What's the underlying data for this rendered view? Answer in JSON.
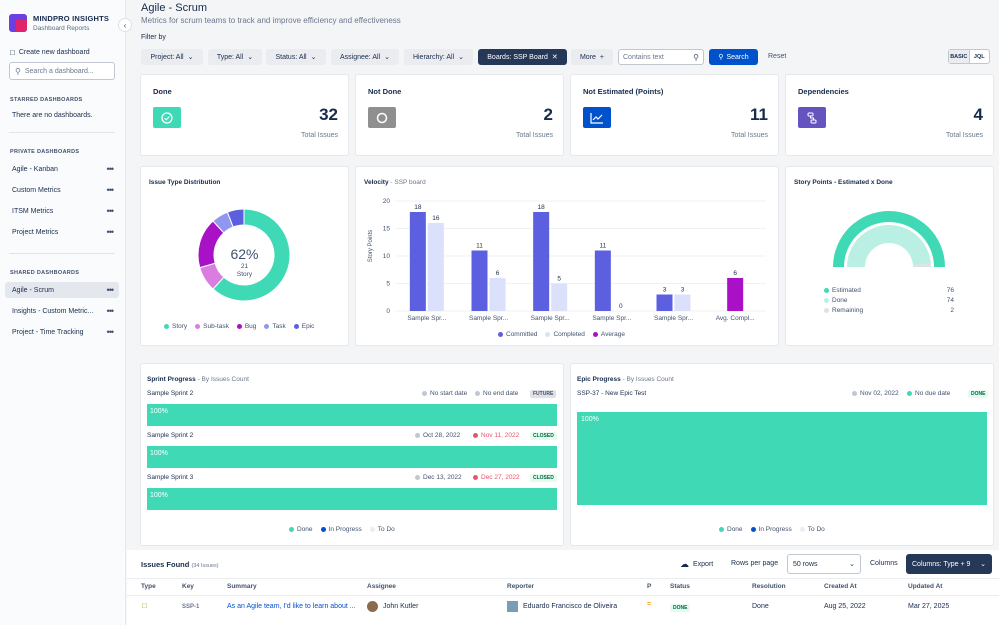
{
  "sidebar": {
    "brand": "MINDPRO INSIGHTS",
    "brand_sub": "Dashboard Reports",
    "create": "Create new dashboard",
    "search_placeholder": "Search a dashboard...",
    "starred_title": "STARRED DASHBOARDS",
    "starred_empty": "There are no dashboards.",
    "private_title": "PRIVATE DASHBOARDS",
    "private": [
      "Agile - Kanban",
      "Custom Metrics",
      "ITSM Metrics",
      "Project Metrics"
    ],
    "shared_title": "SHARED DASHBOARDS",
    "shared": [
      "Agile - Scrum",
      "Insights - Custom Metric...",
      "Project - Time Tracking"
    ]
  },
  "header": {
    "title": "Agile - Scrum",
    "subtitle": "Metrics for scrum teams to track and improve efficiency and effectiveness",
    "filter_by": "Filter by"
  },
  "filters": {
    "project": "Project: All",
    "type": "Type: All",
    "status": "Status: All",
    "assignee": "Assignee: All",
    "hierarchy": "Hierarchy: All",
    "boards": "Boards: SSP Board",
    "more": "More",
    "contains_placeholder": "Contains text",
    "search": "Search",
    "reset": "Reset",
    "basic": "BASIC",
    "jql": "JQL"
  },
  "stats": [
    {
      "title": "Done",
      "value": "32",
      "sub": "Total Issues",
      "color": "#3fd9b6"
    },
    {
      "title": "Not Done",
      "value": "2",
      "sub": "Total Issues",
      "color": "#8f8f8f"
    },
    {
      "title": "Not Estimated (Points)",
      "value": "11",
      "sub": "Total Issues",
      "color": "#0052cc"
    },
    {
      "title": "Dependencies",
      "value": "4",
      "sub": "Total Issues",
      "color": "#6554c0"
    }
  ],
  "issue_type": {
    "title": "Issue Type Distribution",
    "center_pct": "62%",
    "center_count": "21",
    "center_label": "Story",
    "legend": [
      "Story",
      "Sub-task",
      "Bug",
      "Task",
      "Epic"
    ]
  },
  "velocity": {
    "title": "Velocity",
    "subtitle": "- SSP board",
    "ylabel": "Story Points",
    "legend": [
      "Committed",
      "Completed",
      "Average"
    ]
  },
  "story_points": {
    "title": "Story Points - Estimated x Done",
    "rows": [
      {
        "label": "Estimated",
        "value": "76"
      },
      {
        "label": "Done",
        "value": "74"
      },
      {
        "label": "Remaining",
        "value": "2"
      }
    ]
  },
  "chart_data": [
    {
      "type": "pie",
      "title": "Issue Type Distribution",
      "labels": [
        "Story",
        "Sub-task",
        "Bug",
        "Task",
        "Epic"
      ],
      "values": [
        21,
        3,
        6,
        2,
        2
      ],
      "colors": [
        "#3fd9b6",
        "#d97ee0",
        "#a811c6",
        "#8f98ee",
        "#5b5fe0"
      ]
    },
    {
      "type": "bar",
      "title": "Velocity",
      "xlabel": "",
      "ylabel": "Story Points",
      "ylim": [
        0,
        20
      ],
      "categories": [
        "Sample Spr...",
        "Sample Spr...",
        "Sample Spr...",
        "Sample Spr...",
        "Sample Spr...",
        "Avg. Compl..."
      ],
      "series": [
        {
          "name": "Committed",
          "values": [
            18,
            11,
            18,
            11,
            3,
            null
          ]
        },
        {
          "name": "Completed",
          "values": [
            16,
            6,
            5,
            0,
            3,
            null
          ]
        },
        {
          "name": "Average",
          "values": [
            null,
            null,
            null,
            null,
            null,
            6
          ]
        }
      ],
      "colors": [
        "#5b5fe0",
        "#dbe1fa",
        "#a811c6"
      ],
      "yticks": [
        "0",
        "5",
        "10",
        "15",
        "20"
      ]
    },
    {
      "type": "pie",
      "title": "Story Points - Estimated x Done",
      "labels": [
        "Done",
        "Remaining"
      ],
      "values": [
        74,
        2
      ]
    }
  ],
  "sprint": {
    "title": "Sprint Progress",
    "subtitle": "- By Issues Count",
    "rows": [
      {
        "name": "Sample Sprint 2",
        "start": "No start date",
        "end": "No end date",
        "badge": "FUTURE",
        "pct": "100%"
      },
      {
        "name": "Sample Sprint 2",
        "start": "Oct 28, 2022",
        "end": "Nov 11, 2022",
        "badge": "CLOSED",
        "pct": "100%"
      },
      {
        "name": "Sample Sprint 3",
        "start": "Dec 13, 2022",
        "end": "Dec 27, 2022",
        "badge": "CLOSED",
        "pct": "100%"
      }
    ],
    "legend": [
      "Done",
      "In Progress",
      "To Do"
    ]
  },
  "epic": {
    "title": "Epic Progress",
    "subtitle": "- By Issues Count",
    "name": "SSP-37 - New Epic Test",
    "start": "Nov 02, 2022",
    "end": "No due date",
    "badge": "DONE",
    "pct": "100%",
    "legend": [
      "Done",
      "In Progress",
      "To Do"
    ]
  },
  "issues": {
    "title": "Issues Found",
    "count": "(34 Issues)",
    "export": "Export",
    "rows_per_page": "Rows per page",
    "rows_value": "50 rows",
    "columns": "Columns",
    "columns_btn": "Columns: Type + 9",
    "headers": [
      "Type",
      "Key",
      "Summary",
      "Assignee",
      "Reporter",
      "P",
      "Status",
      "Resolution",
      "Created At",
      "Updated At"
    ],
    "row": {
      "key": "SSP-1",
      "summary": "As an Agile team, I'd like to learn about ...",
      "assignee": "John Kutler",
      "reporter": "Eduardo Francisco de Oliveira",
      "status": "DONE",
      "resolution": "Done",
      "created": "Aug 25, 2022",
      "updated": "Mar 27, 2025"
    }
  }
}
